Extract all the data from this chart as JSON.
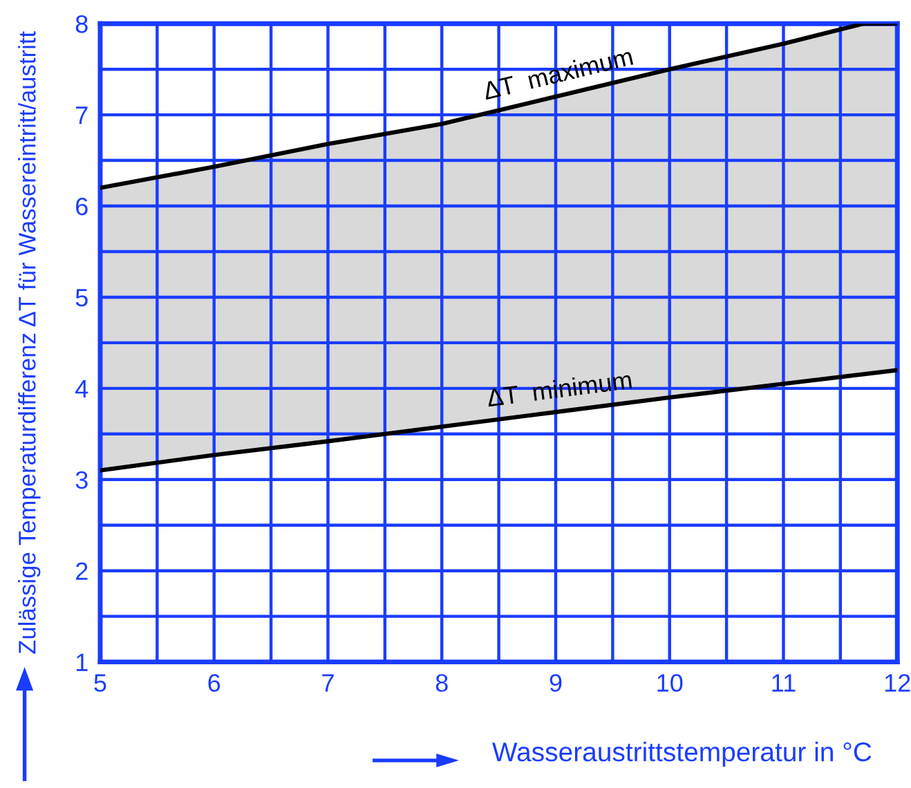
{
  "chart_data": {
    "type": "line",
    "xlabel": "Wasseraustrittstemperatur in °C",
    "ylabel": "Zulässige Temperaturdifferenz ΔT für Wassereintritt/austritt",
    "xlim": [
      5,
      12
    ],
    "ylim": [
      1,
      8
    ],
    "xticks": [
      5,
      {
        "value": 5.5,
        "label": null
      },
      6,
      {
        "value": 6.5,
        "label": null
      },
      7,
      {
        "value": 7.5,
        "label": null
      },
      8,
      {
        "value": 8.5,
        "label": null
      },
      9,
      {
        "value": 9.5,
        "label": null
      },
      10,
      {
        "value": 10.5,
        "label": null
      },
      11,
      {
        "value": 11.5,
        "label": null
      },
      12
    ],
    "yticks": [
      1,
      {
        "value": 1.5,
        "label": null
      },
      2,
      {
        "value": 2.5,
        "label": null
      },
      3,
      {
        "value": 3.5,
        "label": null
      },
      4,
      {
        "value": 4.5,
        "label": null
      },
      5,
      {
        "value": 5.5,
        "label": null
      },
      6,
      {
        "value": 6.5,
        "label": null
      },
      7,
      {
        "value": 7.5,
        "label": null
      },
      8
    ],
    "grid": true,
    "series": [
      {
        "name": "ΔT  maximum",
        "color": "#000000",
        "x": [
          5,
          6,
          7,
          8,
          9,
          10,
          11,
          11.7,
          12
        ],
        "values": [
          6.2,
          6.43,
          6.68,
          6.9,
          7.2,
          7.5,
          7.78,
          8.0,
          8.0
        ],
        "lower": [
          3.1,
          3.27,
          3.42,
          3.58,
          3.74,
          3.9,
          4.05,
          4.16,
          4.2
        ],
        "upper": [
          6.2,
          6.43,
          6.68,
          6.9,
          7.2,
          7.5,
          7.78,
          8.0,
          8.0
        ]
      },
      {
        "name": "ΔT  minimum",
        "color": "#000000",
        "x": [
          5,
          6,
          7,
          8,
          9,
          10,
          11,
          12
        ],
        "values": [
          3.1,
          3.27,
          3.42,
          3.58,
          3.74,
          3.9,
          4.05,
          4.2
        ]
      }
    ]
  }
}
